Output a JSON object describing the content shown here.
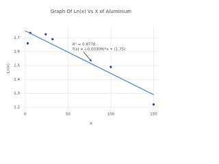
{
  "chart_data": {
    "type": "scatter",
    "title": "Graph Of Ln(x) Vs X of Aluminium",
    "x_label": "X",
    "y_label": "Ln(x)",
    "series": [
      {
        "mode": "markers",
        "color": "#1f3d8c",
        "x": [
          3,
          6,
          24,
          32,
          100,
          150
        ],
        "values": [
          1.66,
          1.735,
          1.725,
          1.69,
          1.49,
          1.22
        ]
      },
      {
        "mode": "line",
        "color": "#4a7fb8",
        "x": [
          0,
          150
        ],
        "values": [
          1.75,
          1.29
        ]
      }
    ],
    "annotations": [
      "R² = 0.8778",
      "f(x) = (-0.00309)*x + (1.75)"
    ],
    "xlim": [
      -3,
      156
    ],
    "xticks": [
      0,
      50,
      100,
      150
    ],
    "ylim": [
      1.18,
      1.78
    ],
    "yticks": [
      1.2,
      1.3,
      1.4,
      1.5,
      1.6,
      1.7
    ],
    "grid": true
  }
}
